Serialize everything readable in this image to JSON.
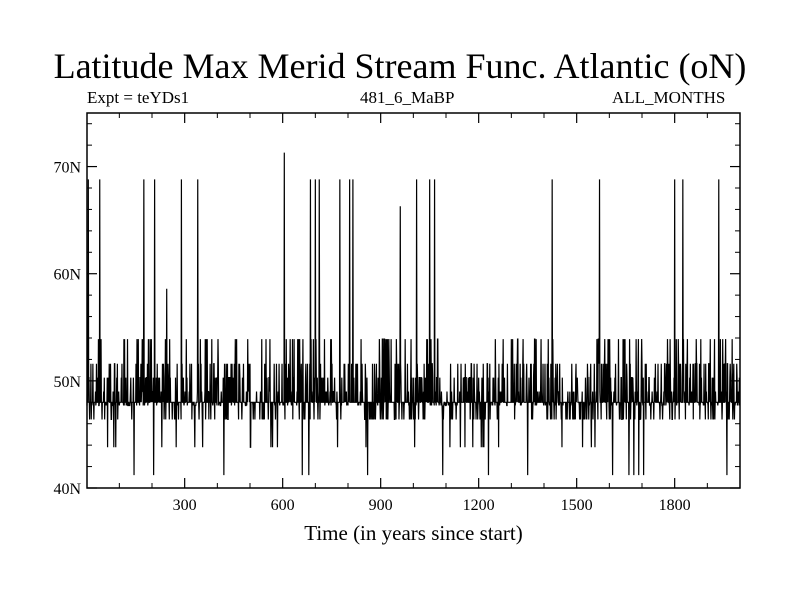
{
  "chart_data": {
    "type": "line",
    "title": "Latitude Max Merid Stream Func. Atlantic (oN)",
    "subtitle_left": "Expt = teYDs1",
    "subtitle_center": "481_6_MaBP",
    "subtitle_right": "ALL_MONTHS",
    "xlabel": "Time (in years since start)",
    "ylabel": "",
    "xlim": [
      1,
      2000
    ],
    "ylim": [
      40,
      75
    ],
    "x_ticks": [
      300,
      600,
      900,
      1200,
      1500,
      1800
    ],
    "x_tick_labels": [
      "300",
      "600",
      "900",
      "1200",
      "1500",
      "1800"
    ],
    "y_ticks": [
      40,
      50,
      60,
      70
    ],
    "y_tick_labels": [
      "40N",
      "50N",
      "60N",
      "70N"
    ],
    "grid": false,
    "legend": "none",
    "line_color": "#000000",
    "series": [
      {
        "values_by_year": {
          "start_year": 1,
          "step_years": 1,
          "levels": [
            41.2,
            43.8,
            46.4,
            47.7,
            49.0,
            50.3,
            51.6,
            53.9,
            58.6,
            66.3,
            68.8,
            71.3
          ],
          "baseline_level": 48.0,
          "baseline_band": [
            46.4,
            51.6
          ],
          "spikes_up": [
            {
              "x": 5,
              "y": 68.8
            },
            {
              "x": 40,
              "y": 68.8
            },
            {
              "x": 175,
              "y": 68.8
            },
            {
              "x": 208,
              "y": 68.8
            },
            {
              "x": 245,
              "y": 58.6
            },
            {
              "x": 290,
              "y": 68.8
            },
            {
              "x": 340,
              "y": 68.8
            },
            {
              "x": 605,
              "y": 71.3
            },
            {
              "x": 685,
              "y": 68.8
            },
            {
              "x": 700,
              "y": 68.8
            },
            {
              "x": 712,
              "y": 68.8
            },
            {
              "x": 775,
              "y": 68.8
            },
            {
              "x": 805,
              "y": 68.8
            },
            {
              "x": 815,
              "y": 68.8
            },
            {
              "x": 960,
              "y": 66.3
            },
            {
              "x": 1010,
              "y": 68.8
            },
            {
              "x": 1050,
              "y": 68.8
            },
            {
              "x": 1065,
              "y": 68.8
            },
            {
              "x": 1425,
              "y": 68.8
            },
            {
              "x": 1570,
              "y": 68.8
            },
            {
              "x": 1800,
              "y": 68.8
            },
            {
              "x": 1825,
              "y": 68.8
            },
            {
              "x": 1935,
              "y": 68.8
            }
          ],
          "spikes_down": [
            {
              "x": 145,
              "y": 41.2
            },
            {
              "x": 205,
              "y": 41.2
            },
            {
              "x": 420,
              "y": 41.2
            },
            {
              "x": 660,
              "y": 41.2
            },
            {
              "x": 680,
              "y": 41.2
            },
            {
              "x": 860,
              "y": 41.2
            },
            {
              "x": 1090,
              "y": 41.2
            },
            {
              "x": 1230,
              "y": 41.2
            },
            {
              "x": 1350,
              "y": 41.2
            },
            {
              "x": 1610,
              "y": 41.2
            },
            {
              "x": 1660,
              "y": 41.2
            },
            {
              "x": 1675,
              "y": 41.2
            },
            {
              "x": 1690,
              "y": 41.2
            },
            {
              "x": 1705,
              "y": 41.2
            },
            {
              "x": 1960,
              "y": 41.2
            }
          ],
          "dense_upper_periods": [
            [
              1,
              60
            ],
            [
              100,
              200
            ],
            [
              360,
              470
            ],
            [
              600,
              760
            ],
            [
              880,
              1000
            ],
            [
              1030,
              1110
            ],
            [
              1300,
              1420
            ],
            [
              1560,
              1600
            ],
            [
              1640,
              1700
            ],
            [
              1760,
              1990
            ]
          ]
        }
      }
    ]
  }
}
